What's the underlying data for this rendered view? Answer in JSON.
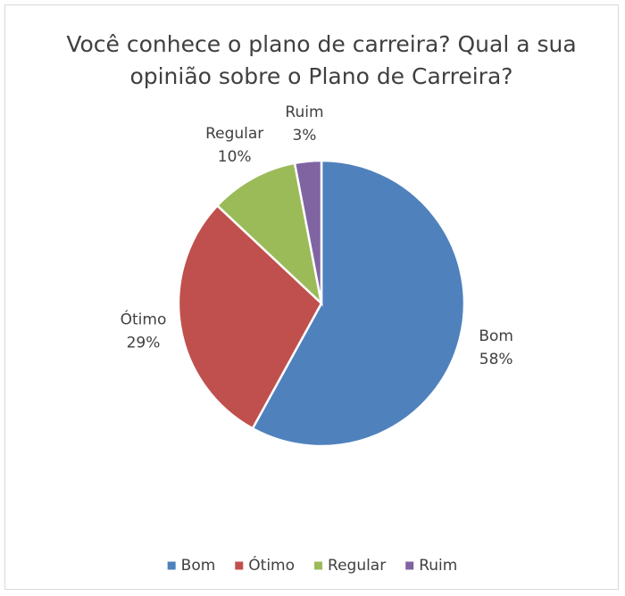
{
  "chart_data": {
    "type": "pie",
    "title": "Você conhece o plano de carreira? Qual a sua opinião sobre o Plano de Carreira?",
    "categories": [
      "Bom",
      "Ótimo",
      "Regular",
      "Ruim"
    ],
    "values": [
      58,
      29,
      10,
      3
    ],
    "value_labels": [
      "58%",
      "29%",
      "10%",
      "3%"
    ],
    "colors": [
      "#4f81bd",
      "#c0504d",
      "#9bbb59",
      "#8064a2"
    ],
    "legend": "bottom"
  }
}
